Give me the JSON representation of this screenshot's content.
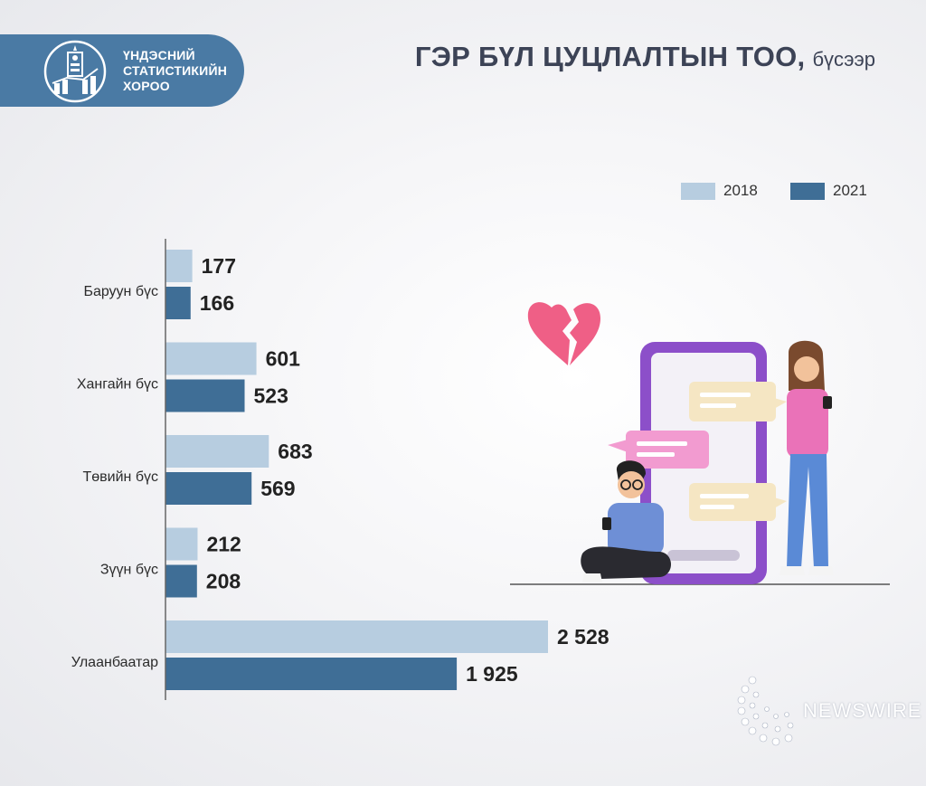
{
  "header": {
    "org_line1": "ҮНДЭСНИЙ",
    "org_line2": "СТАТИСТИКИЙН",
    "org_line3": "ХОРОО",
    "title_main": "ГЭР БҮЛ ЦУЦЛАЛТЫН ТОО,",
    "title_sub": "бүсээр"
  },
  "legend": [
    {
      "label": "2018",
      "color": "#b7cde0"
    },
    {
      "label": "2021",
      "color": "#3f6e96"
    }
  ],
  "chart_data": {
    "type": "bar",
    "orientation": "horizontal",
    "title": "ГЭР БҮЛ ЦУЦЛАЛТЫН ТОО, бүсээр",
    "categories": [
      "Баруун бүс",
      "Хангайн бүс",
      "Төвийн бүс",
      "Зүүн бүс",
      "Улаанбаатар"
    ],
    "series": [
      {
        "name": "2018",
        "values": [
          177,
          601,
          683,
          212,
          2528
        ],
        "labels": [
          "177",
          "601",
          "683",
          "212",
          "2 528"
        ],
        "color": "#b7cde0"
      },
      {
        "name": "2021",
        "values": [
          166,
          523,
          569,
          208,
          1925
        ],
        "labels": [
          "166",
          "523",
          "569",
          "208",
          "1 925"
        ],
        "color": "#3f6e96"
      }
    ],
    "legend_position": "top-right",
    "grid": false
  },
  "watermark": {
    "text": "NEWSWIRE"
  },
  "illustration": {
    "icon": "broken-heart-icon"
  }
}
